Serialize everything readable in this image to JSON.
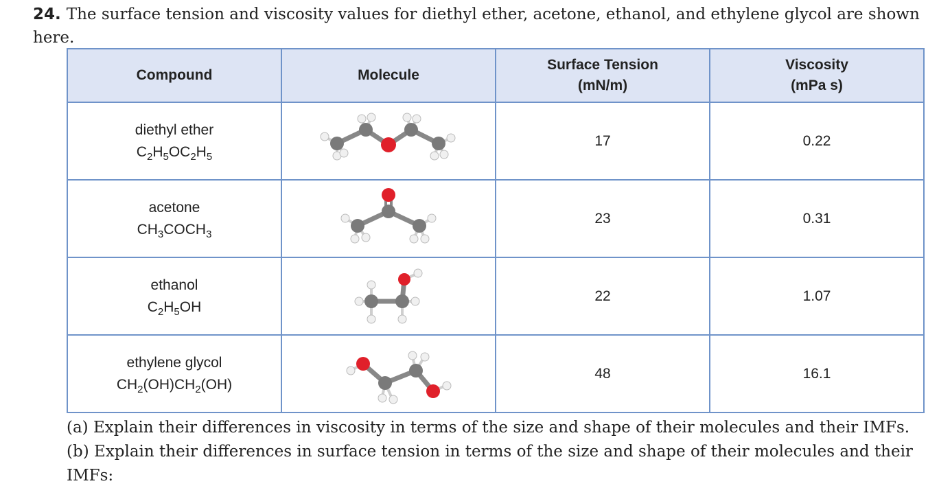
{
  "question": {
    "number": "24.",
    "text": "The surface tension and viscosity values for diethyl ether, acetone, ethanol, and ethylene glycol are shown here."
  },
  "table": {
    "headers": {
      "compound": "Compound",
      "molecule": "Molecule",
      "surface_tension_line1": "Surface Tension",
      "surface_tension_line2": "(mN/m)",
      "viscosity_line1": "Viscosity",
      "viscosity_line2": "(mPa s)"
    },
    "rows": [
      {
        "name": "diethyl ether",
        "formula": [
          [
            "C",
            ""
          ],
          [
            "2",
            "sub"
          ],
          [
            "H",
            ""
          ],
          [
            "5",
            "sub"
          ],
          [
            "OC",
            ""
          ],
          [
            "2",
            "sub"
          ],
          [
            "H",
            ""
          ],
          [
            "5",
            "sub"
          ]
        ],
        "molecule_icon": "diethyl-ether-ball-and-stick",
        "surface_tension": "17",
        "viscosity": "0.22"
      },
      {
        "name": "acetone",
        "formula": [
          [
            "CH",
            ""
          ],
          [
            "3",
            "sub"
          ],
          [
            "COCH",
            ""
          ],
          [
            "3",
            "sub"
          ]
        ],
        "molecule_icon": "acetone-ball-and-stick",
        "surface_tension": "23",
        "viscosity": "0.31"
      },
      {
        "name": "ethanol",
        "formula": [
          [
            "C",
            ""
          ],
          [
            "2",
            "sub"
          ],
          [
            "H",
            ""
          ],
          [
            "5",
            "sub"
          ],
          [
            "OH",
            ""
          ]
        ],
        "molecule_icon": "ethanol-ball-and-stick",
        "surface_tension": "22",
        "viscosity": "1.07"
      },
      {
        "name": "ethylene glycol",
        "formula": [
          [
            "CH",
            ""
          ],
          [
            "2",
            "sub"
          ],
          [
            "(OH)CH",
            ""
          ],
          [
            "2",
            "sub"
          ],
          [
            "(OH)",
            ""
          ]
        ],
        "molecule_icon": "ethylene-glycol-ball-and-stick",
        "surface_tension": "48",
        "viscosity": "16.1"
      }
    ]
  },
  "parts": {
    "a": "(a) Explain their differences in viscosity in terms of the size and shape of their molecules and their IMFs.",
    "b": "(b) Explain their differences in surface tension in terms of the size and shape of their molecules and their IMFs:"
  },
  "colors": {
    "header_bg": "#dde4f4",
    "border": "#6f93c9",
    "carbon": "#7a7a7a",
    "oxygen": "#e0202a",
    "hydrogen": "#f2f2f2"
  }
}
